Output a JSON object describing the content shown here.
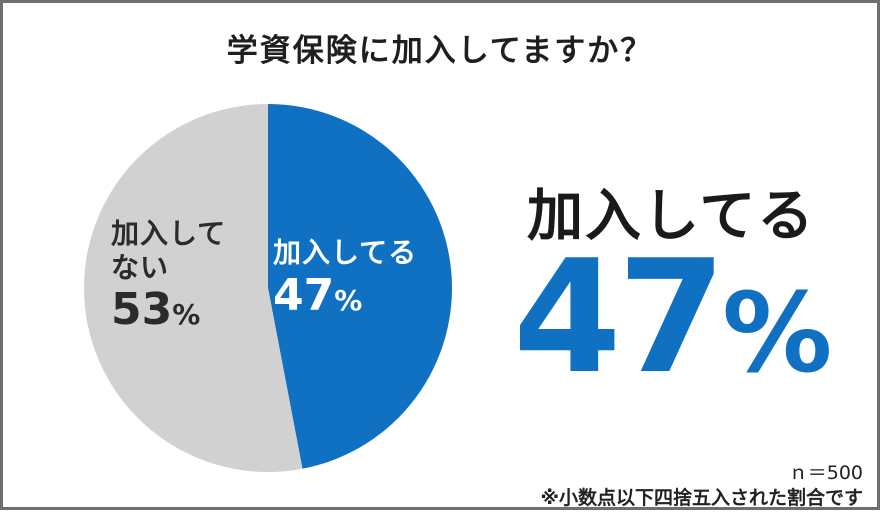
{
  "title": "学資保険に加入してますか？",
  "colors": {
    "joined": "#1070c2",
    "not_joined": "#d1d1d1",
    "accent": "#1070c2"
  },
  "chart_data": {
    "type": "pie",
    "title": "学資保険に加入してますか？",
    "slices": [
      {
        "label": "加入してる",
        "value": 47,
        "color": "#1070c2"
      },
      {
        "label": "加入してない",
        "value": 53,
        "color": "#d1d1d1"
      }
    ],
    "unit": "%"
  },
  "labels": {
    "joined_line1": "加入してる",
    "joined_pct": "47",
    "not_joined_line1": "加入して",
    "not_joined_line2": "ない",
    "not_joined_pct": "53",
    "percent_sign": "%"
  },
  "highlight": {
    "label": "加入してる",
    "value": "47",
    "sign": "%"
  },
  "footnote": {
    "sample": "ｎ＝500",
    "rounding": "※小数点以下四捨五入された割合です"
  }
}
